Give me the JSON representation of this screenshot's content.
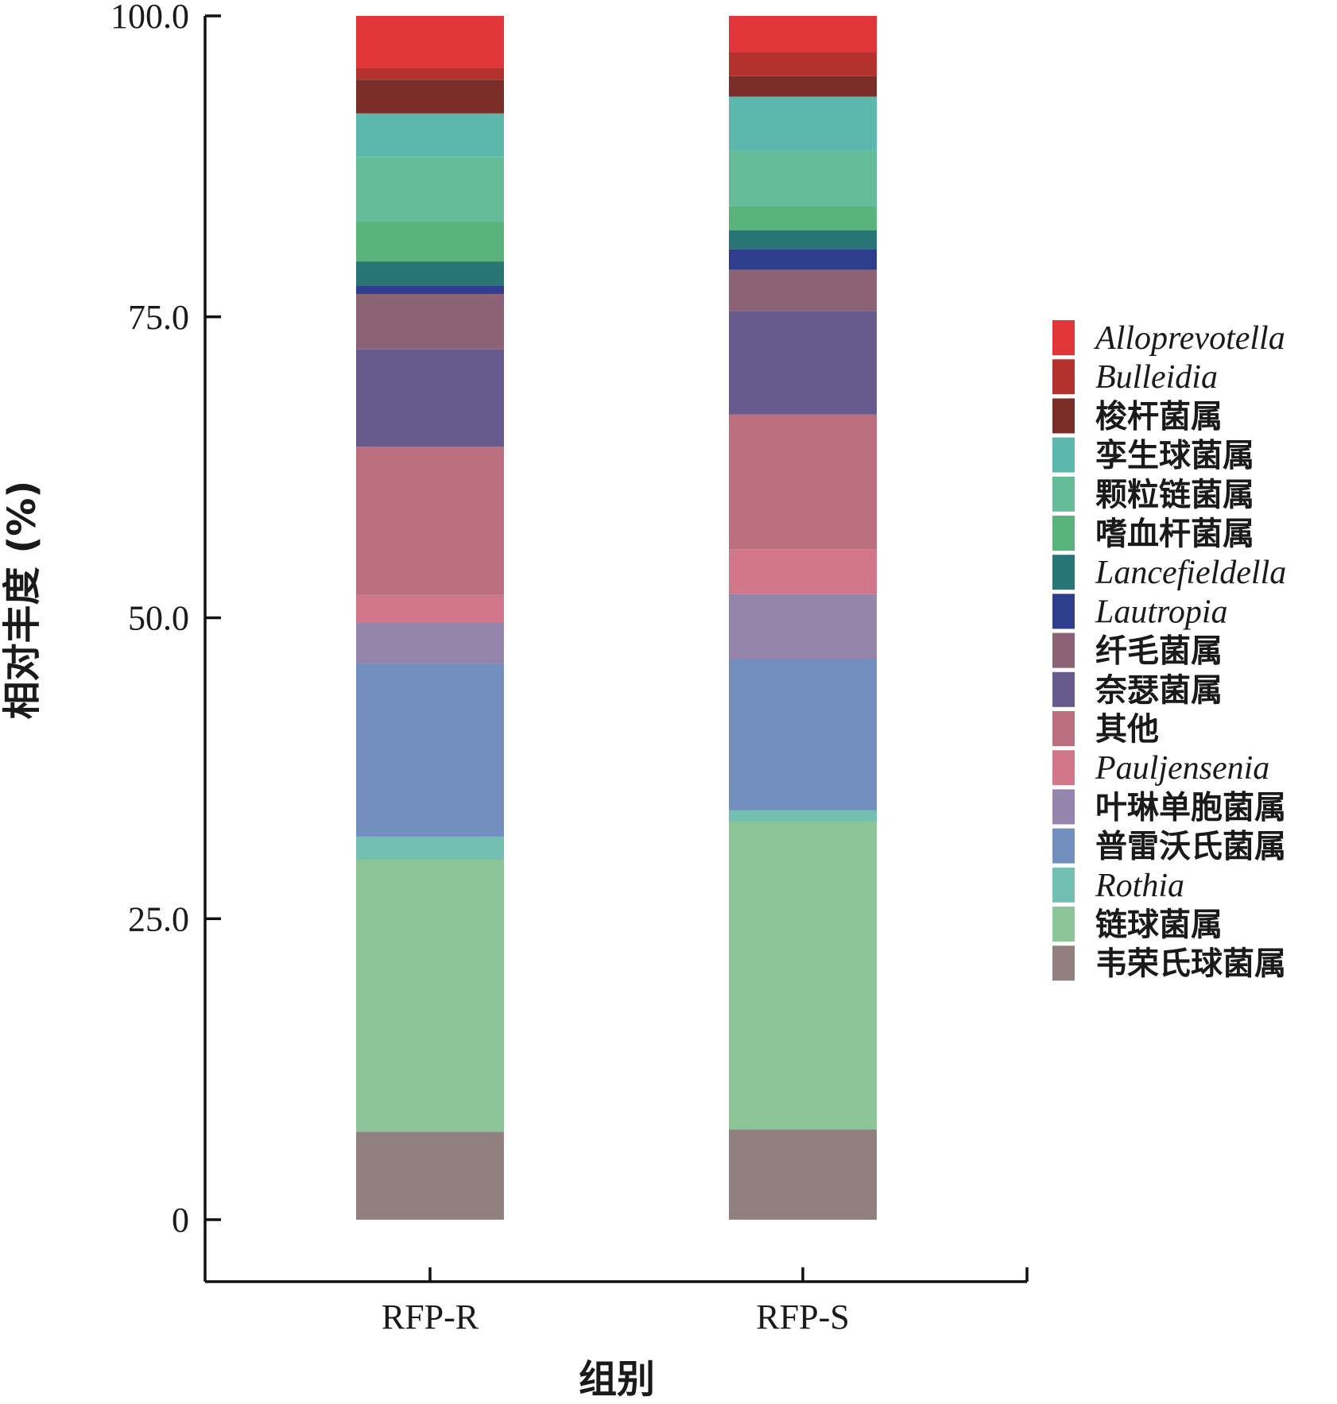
{
  "chart_data": {
    "type": "bar",
    "stacked": true,
    "categories": [
      "RFP-R",
      "RFP-S"
    ],
    "xlabel": "组别",
    "ylabel": "相对丰度 (%)",
    "ylim": [
      0,
      100
    ],
    "yticks": [
      "0",
      "25.0",
      "50.0",
      "75.0",
      "100.0"
    ],
    "ytick_values": [
      0,
      25,
      50,
      75,
      100
    ],
    "legend_position": "right",
    "series": [
      {
        "name": "韦荣氏球菌属",
        "italic": false,
        "color": "#927f7f",
        "values": [
          7.3,
          7.5
        ]
      },
      {
        "name": "链球菌属",
        "italic": false,
        "color": "#8cc597",
        "values": [
          22.6,
          25.6
        ]
      },
      {
        "name": "Rothia",
        "italic": true,
        "color": "#73bfb1",
        "values": [
          1.9,
          0.9
        ]
      },
      {
        "name": "普雷沃氏菌属",
        "italic": false,
        "color": "#738fbf",
        "values": [
          14.4,
          12.6
        ]
      },
      {
        "name": "叶琳单胞菌属",
        "italic": false,
        "color": "#9585ad",
        "values": [
          3.4,
          5.4
        ]
      },
      {
        "name": "Pauljensenia",
        "italic": true,
        "color": "#d2768a",
        "values": [
          2.3,
          3.7
        ]
      },
      {
        "name": "其他",
        "italic": false,
        "color": "#ba6e7e",
        "values": [
          12.3,
          11.2
        ]
      },
      {
        "name": "奈瑟菌属",
        "italic": false,
        "color": "#675a8c",
        "values": [
          8.1,
          8.6
        ]
      },
      {
        "name": "纤毛菌属",
        "italic": false,
        "color": "#8c6275",
        "values": [
          4.6,
          3.4
        ]
      },
      {
        "name": "Lautropia",
        "italic": true,
        "color": "#2e3d8c",
        "values": [
          0.7,
          1.7
        ]
      },
      {
        "name": "Lancefieldella",
        "italic": true,
        "color": "#277575",
        "values": [
          2.0,
          1.6
        ]
      },
      {
        "name": "嗜血杆菌属",
        "italic": false,
        "color": "#59b37a",
        "values": [
          3.3,
          2.0
        ]
      },
      {
        "name": "颗粒链菌属",
        "italic": false,
        "color": "#66bb99",
        "values": [
          5.4,
          4.6
        ]
      },
      {
        "name": "孪生球菌属",
        "italic": false,
        "color": "#5cb8ad",
        "values": [
          3.6,
          4.5
        ]
      },
      {
        "name": "梭杆菌属",
        "italic": false,
        "color": "#7b2e28",
        "values": [
          2.8,
          1.7
        ]
      },
      {
        "name": "Bulleidia",
        "italic": true,
        "color": "#b3322d",
        "values": [
          1.0,
          2.0
        ]
      },
      {
        "name": "Alloprevotella",
        "italic": true,
        "color": "#e03539",
        "values": [
          4.3,
          3.0
        ]
      }
    ]
  }
}
